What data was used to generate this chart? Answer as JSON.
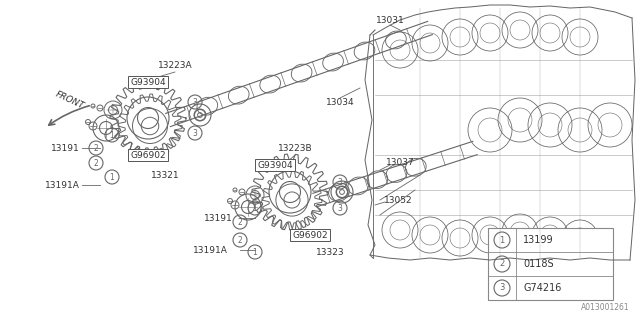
{
  "bg_color": "#ffffff",
  "line_color": "#666666",
  "text_color": "#333333",
  "diagram_number": "A013001261",
  "legend_items": [
    {
      "num": "1",
      "code": "13199"
    },
    {
      "num": "2",
      "code": "0118S"
    },
    {
      "num": "3",
      "code": "G74216"
    }
  ],
  "figsize": [
    6.4,
    3.2
  ],
  "dpi": 100
}
